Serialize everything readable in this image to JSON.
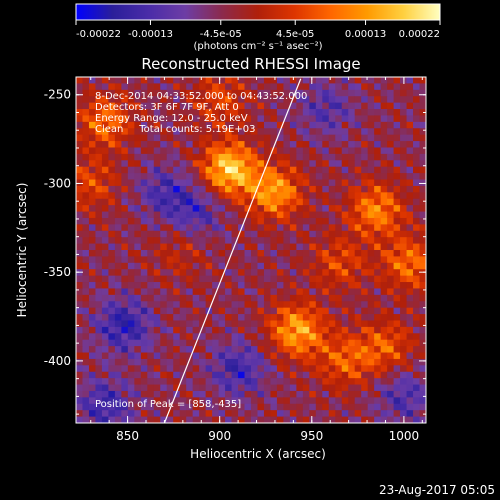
{
  "colorbar": {
    "tick_labels": [
      "-0.00022",
      "-0.00013",
      "-4.5e-05",
      "4.5e-05",
      "0.00013",
      "0.00022"
    ],
    "tick_values": [
      -0.00022,
      -0.00013,
      -4.5e-05,
      4.5e-05,
      0.00013,
      0.00022
    ],
    "range": [
      -0.00022,
      0.00022
    ],
    "unit_label": "(photons cm⁻² s⁻¹ asec⁻²)"
  },
  "annotations": {
    "time_range": "8-Dec-2014 04:33:52.000 to 04:43:52.000",
    "detectors": "Detectors: 3F 6F 7F 9F, Att 0",
    "energy_range": "Energy Range: 12.0 - 25.0 keV",
    "clean_counts": "Clean     Total counts: 5.19E+03",
    "peak_position": "Position of Peak = [858,-435]"
  },
  "footer": {
    "date_stamp": "23-Aug-2017 05:05"
  },
  "colors": {
    "background": "#000000",
    "foreground": "#ffffff",
    "limb_line": "#ffffff",
    "colormap": [
      "#0000ff",
      "#2a1e9a",
      "#4a2ca8",
      "#6d3da5",
      "#8b2a4d",
      "#b0200a",
      "#dd3500",
      "#ff6600",
      "#ff9a00",
      "#ffd040",
      "#ffffc0"
    ]
  },
  "chart_data": {
    "type": "heatmap",
    "title": "Reconstructed RHESSI Image",
    "xlabel": "Heliocentric X (arcsec)",
    "ylabel": "Heliocentric Y (arcsec)",
    "xlim": [
      822,
      1012
    ],
    "ylim": [
      -435,
      -240
    ],
    "x_ticks": [
      850,
      900,
      950,
      1000
    ],
    "y_ticks": [
      -250,
      -300,
      -350,
      -400
    ],
    "x_tick_labels": [
      "850",
      "900",
      "950",
      "1000"
    ],
    "y_tick_labels": [
      "-250",
      "-300",
      "-350",
      "-400"
    ],
    "limb_line": {
      "x": [
        870,
        944
      ],
      "y": [
        -435,
        -241
      ]
    },
    "peak": {
      "x": 858,
      "y": -435
    },
    "value_range": [
      -0.00022,
      0.00022
    ],
    "hot_regions": [
      {
        "x": 905,
        "y": -292,
        "level": 0.00022
      },
      {
        "x": 930,
        "y": -305,
        "level": 0.00017
      },
      {
        "x": 838,
        "y": -265,
        "level": 0.00013
      },
      {
        "x": 830,
        "y": -300,
        "level": 9e-05
      },
      {
        "x": 985,
        "y": -315,
        "level": 0.00015
      },
      {
        "x": 1003,
        "y": -345,
        "level": 0.00013
      },
      {
        "x": 965,
        "y": -345,
        "level": 9e-05
      },
      {
        "x": 942,
        "y": -383,
        "level": 0.00018
      },
      {
        "x": 968,
        "y": -400,
        "level": 0.00011
      },
      {
        "x": 990,
        "y": -392,
        "level": 0.00011
      },
      {
        "x": 900,
        "y": -253,
        "level": 9e-05
      },
      {
        "x": 878,
        "y": -340,
        "level": 5e-05
      }
    ],
    "cold_regions": [
      {
        "x": 848,
        "y": -380,
        "level": -0.00013
      },
      {
        "x": 838,
        "y": -425,
        "level": -0.00011
      },
      {
        "x": 888,
        "y": -315,
        "level": -9e-05
      },
      {
        "x": 870,
        "y": -305,
        "level": -9e-05
      },
      {
        "x": 958,
        "y": -258,
        "level": -8e-05
      },
      {
        "x": 910,
        "y": -405,
        "level": -0.00011
      },
      {
        "x": 1000,
        "y": -420,
        "level": -9e-05
      }
    ]
  }
}
